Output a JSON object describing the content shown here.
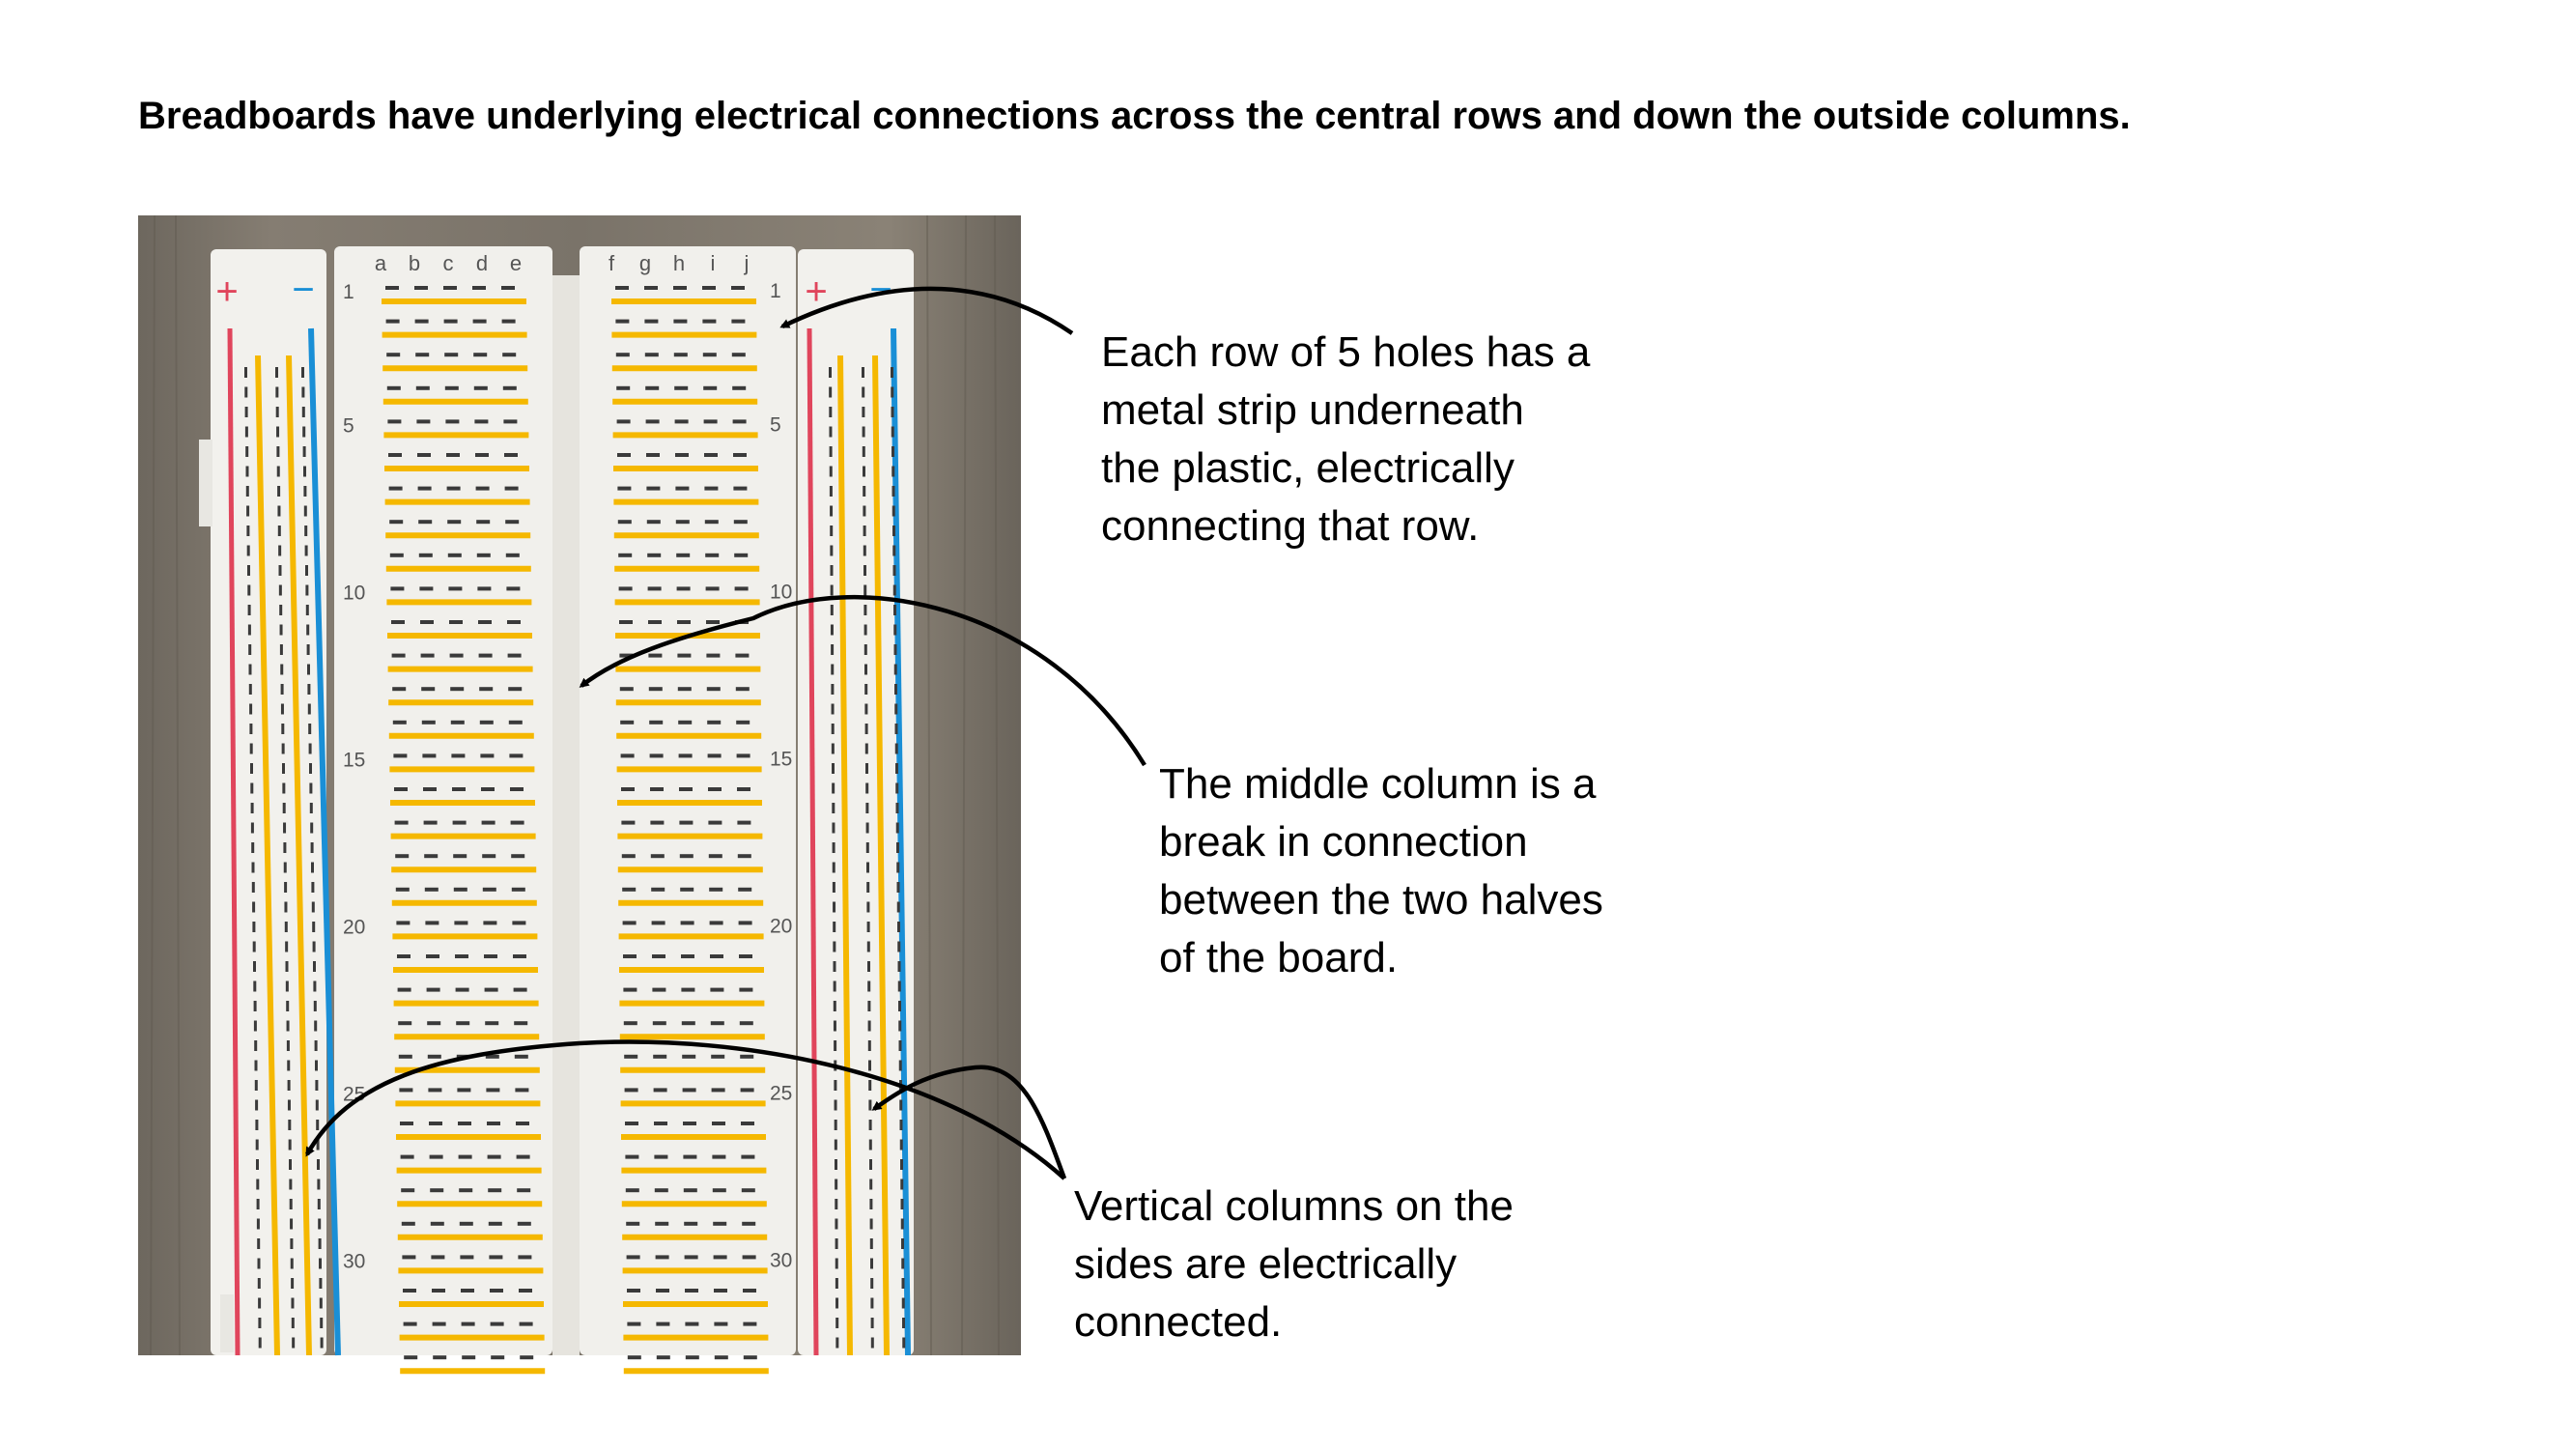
{
  "title": "Breadboards have underlying electrical connections across the central rows and down the outside columns.",
  "annotations": {
    "rows": [
      "Each row of 5 holes has a",
      "metal strip underneath",
      "the plastic, electrically",
      "connecting that row."
    ],
    "middle": [
      "The middle column is a",
      "break in connection",
      "between the two halves",
      "of the board."
    ],
    "rails": [
      "Vertical columns on the",
      "sides are electrically",
      "connected."
    ]
  },
  "board": {
    "left_columns": [
      "a",
      "b",
      "c",
      "d",
      "e"
    ],
    "right_columns": [
      "f",
      "g",
      "h",
      "i",
      "j"
    ],
    "row_numbers": [
      "1",
      "5",
      "10",
      "15",
      "20",
      "25",
      "30"
    ],
    "rail_plus": "+",
    "rail_minus": "−"
  },
  "colors": {
    "wood": "#7d766c",
    "plastic": "#f1f0ec",
    "strip": "#f5b800",
    "red_rail": "#e0455c",
    "blue_rail": "#1a8fd6",
    "arrow": "#000000"
  }
}
